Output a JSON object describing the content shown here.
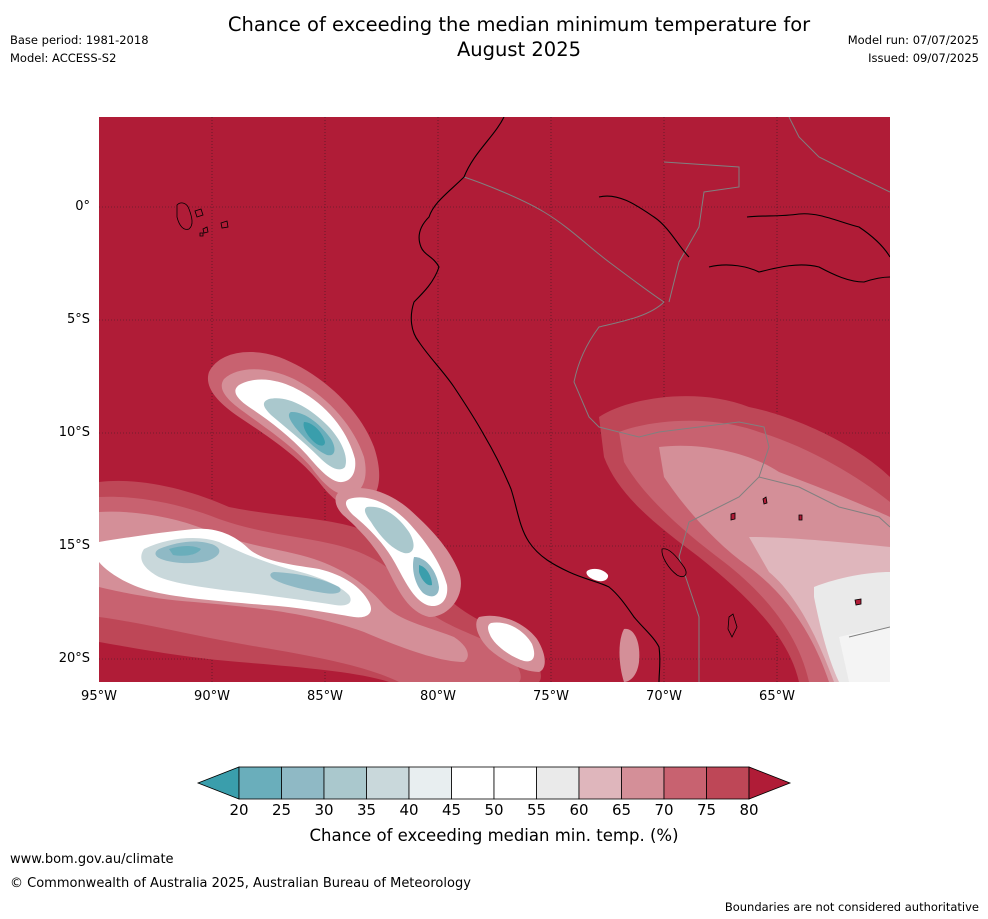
{
  "header": {
    "title_line1": "Chance of exceeding the median minimum temperature for",
    "title_line2": "August 2025",
    "base_period": "Base period: 1981-2018",
    "model": "Model: ACCESS-S2",
    "model_run": "Model run: 07/07/2025",
    "issued": "Issued: 09/07/2025"
  },
  "map": {
    "lat_labels": [
      "0°",
      "5°S",
      "10°S",
      "15°S",
      "20°S"
    ],
    "lon_labels": [
      "95°W",
      "90°W",
      "85°W",
      "80°W",
      "75°W",
      "70°W",
      "65°W"
    ],
    "background_color": "#b01c37"
  },
  "colorbar": {
    "ticks": [
      "20",
      "25",
      "30",
      "35",
      "40",
      "45",
      "50",
      "55",
      "60",
      "65",
      "70",
      "75",
      "80"
    ],
    "colors": [
      "#3a9eac",
      "#6aaebb",
      "#8fb9c5",
      "#aac8cd",
      "#c9d8db",
      "#e8eef0",
      "#ffffff",
      "#ffffff",
      "#eaeaea",
      "#dfb6bc",
      "#d48f98",
      "#c86270",
      "#be4757",
      "#b01c37"
    ],
    "label": "Chance of exceeding median min. temp. (%)"
  },
  "footer": {
    "website": "www.bom.gov.au/climate",
    "copyright": "© Commonwealth of Australia 2025, Australian Bureau of Meteorology",
    "note": "Boundaries are not considered authoritative"
  }
}
